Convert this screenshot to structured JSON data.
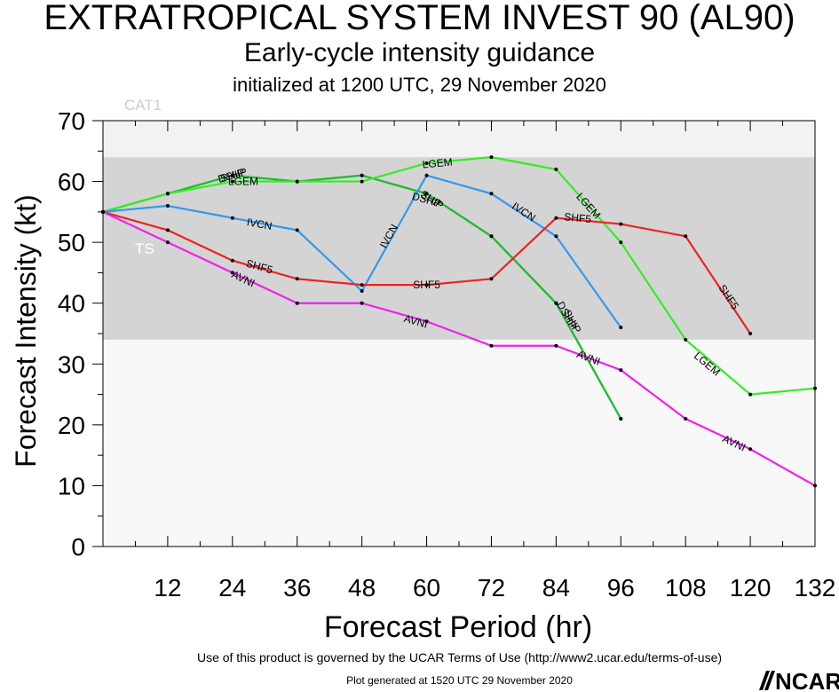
{
  "title": "EXTRATROPICAL SYSTEM INVEST 90 (AL90)",
  "subtitle": "Early-cycle intensity guidance",
  "init_line": "initialized at 1200 UTC, 29 November 2020",
  "footer_terms": "Use of this product is governed by the UCAR Terms of Use (http://www2.ucar.edu/terms-of-use)",
  "footer_generated": "Plot generated at 1520 UTC   29 November 2020",
  "logo_text": "NCAR",
  "chart_data": {
    "type": "line",
    "xlabel": "Forecast Period (hr)",
    "ylabel": "Forecast Intensity (kt)",
    "xlim": [
      0,
      132
    ],
    "ylim": [
      0,
      70
    ],
    "xticks": [
      12,
      24,
      36,
      48,
      60,
      72,
      84,
      96,
      108,
      120,
      132
    ],
    "yticks": [
      0,
      10,
      20,
      30,
      40,
      50,
      60,
      70
    ],
    "bands": [
      {
        "label": "CAT1",
        "from": 64,
        "to": 70,
        "color": "#f2f2f2"
      },
      {
        "label": "TS",
        "from": 34,
        "to": 64,
        "color": "#d4d4d4"
      }
    ],
    "plot_background": "#f8f8f8",
    "series": [
      {
        "name": "DSHP",
        "color": "#22bb33",
        "points": [
          [
            0,
            55
          ],
          [
            12,
            58
          ],
          [
            24,
            61
          ],
          [
            36,
            60
          ],
          [
            48,
            61
          ],
          [
            60,
            58
          ],
          [
            72,
            51
          ],
          [
            84,
            40
          ],
          [
            96,
            21
          ]
        ],
        "labels": [
          [
            24,
            61
          ],
          [
            60,
            57
          ],
          [
            86,
            38
          ]
        ]
      },
      {
        "name": "SHIP",
        "color": "#22bb33",
        "points": [
          [
            0,
            55
          ],
          [
            12,
            58
          ],
          [
            24,
            61
          ],
          [
            36,
            60
          ],
          [
            48,
            61
          ],
          [
            60,
            58
          ],
          [
            72,
            51
          ],
          [
            84,
            40
          ],
          [
            96,
            21
          ]
        ],
        "labels": [
          [
            24,
            61
          ],
          [
            61,
            57
          ],
          [
            87,
            37
          ]
        ]
      },
      {
        "name": "LGEM",
        "color": "#33ee22",
        "points": [
          [
            0,
            55
          ],
          [
            12,
            58
          ],
          [
            24,
            60
          ],
          [
            36,
            60
          ],
          [
            48,
            60
          ],
          [
            60,
            63
          ],
          [
            72,
            64
          ],
          [
            84,
            62
          ],
          [
            96,
            50
          ],
          [
            108,
            34
          ],
          [
            120,
            25
          ],
          [
            132,
            26
          ]
        ],
        "labels": [
          [
            26,
            60
          ],
          [
            62,
            63
          ],
          [
            90,
            56
          ],
          [
            112,
            30
          ]
        ]
      },
      {
        "name": "IVCN",
        "color": "#3399ee",
        "points": [
          [
            0,
            55
          ],
          [
            12,
            56
          ],
          [
            24,
            54
          ],
          [
            36,
            52
          ],
          [
            48,
            42
          ],
          [
            60,
            61
          ],
          [
            72,
            58
          ],
          [
            84,
            51
          ],
          [
            96,
            36
          ]
        ],
        "labels": [
          [
            29,
            53
          ],
          [
            53,
            51
          ],
          [
            78,
            55
          ]
        ]
      },
      {
        "name": "SHF5",
        "color": "#ee2222",
        "points": [
          [
            0,
            55
          ],
          [
            12,
            52
          ],
          [
            24,
            47
          ],
          [
            36,
            44
          ],
          [
            48,
            43
          ],
          [
            60,
            43
          ],
          [
            72,
            44
          ],
          [
            84,
            54
          ],
          [
            96,
            53
          ],
          [
            108,
            51
          ],
          [
            120,
            35
          ]
        ],
        "labels": [
          [
            29,
            46
          ],
          [
            60,
            43
          ],
          [
            88,
            54
          ],
          [
            116,
            41
          ]
        ]
      },
      {
        "name": "AVNI",
        "color": "#ee22ee",
        "points": [
          [
            0,
            55
          ],
          [
            12,
            50
          ],
          [
            24,
            45
          ],
          [
            36,
            40
          ],
          [
            48,
            40
          ],
          [
            60,
            37
          ],
          [
            72,
            33
          ],
          [
            84,
            33
          ],
          [
            96,
            29
          ],
          [
            108,
            21
          ],
          [
            120,
            16
          ],
          [
            132,
            10
          ]
        ],
        "labels": [
          [
            26,
            44
          ],
          [
            58,
            37
          ],
          [
            90,
            31
          ],
          [
            117,
            17
          ]
        ]
      }
    ]
  }
}
